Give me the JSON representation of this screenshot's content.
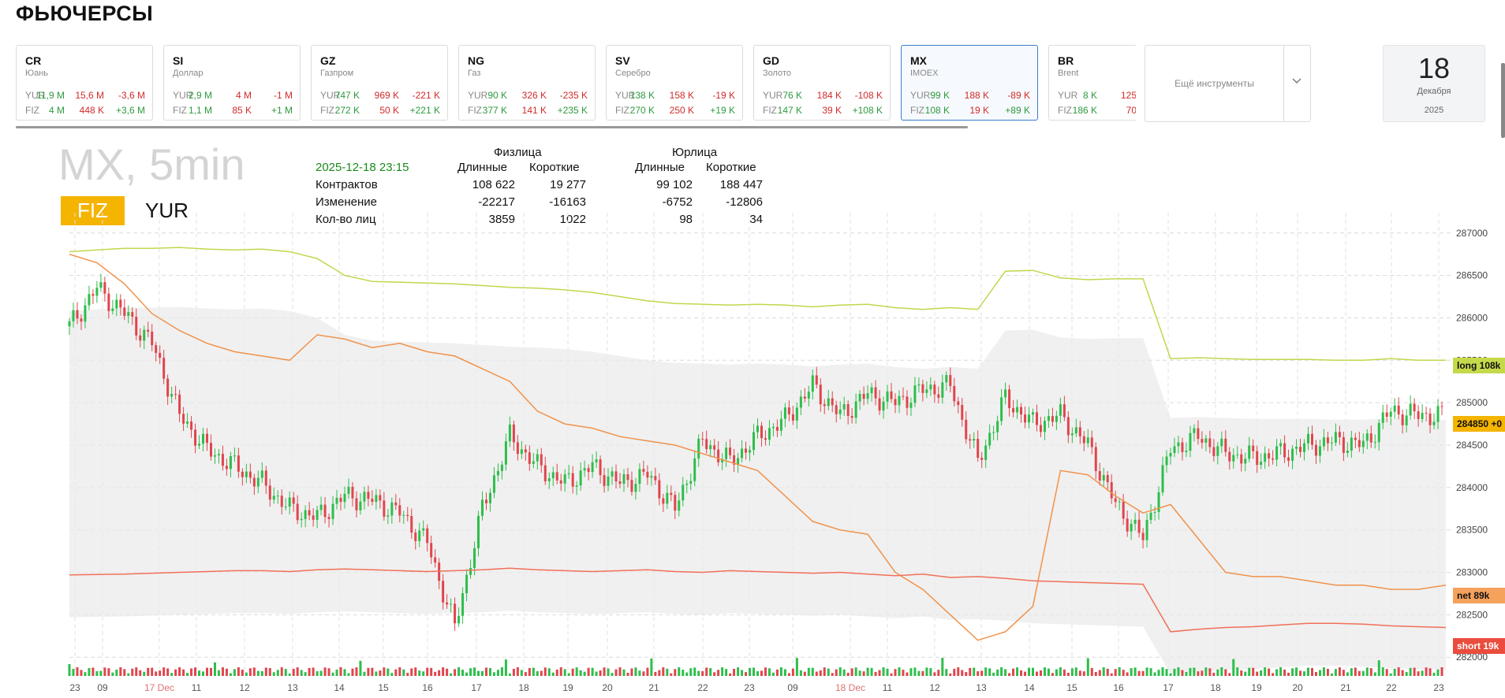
{
  "page_title": "ФЬЮЧЕРСЫ",
  "cards": [
    {
      "ticker": "CR",
      "name": "Юань",
      "yur": [
        "11,9 M",
        "15,6 M",
        "-3,6 M"
      ],
      "fiz": [
        "4 M",
        "448 K",
        "+3,6 M"
      ],
      "selected": false
    },
    {
      "ticker": "SI",
      "name": "Доллар",
      "yur": [
        "2,9 M",
        "4 M",
        "-1 M"
      ],
      "fiz": [
        "1,1 M",
        "85 K",
        "+1 M"
      ],
      "selected": false
    },
    {
      "ticker": "GZ",
      "name": "Газпром",
      "yur": [
        "747 K",
        "969 K",
        "-221 K"
      ],
      "fiz": [
        "272 K",
        "50 K",
        "+221 K"
      ],
      "selected": false
    },
    {
      "ticker": "NG",
      "name": "Газ",
      "yur": [
        "90 K",
        "326 K",
        "-235 K"
      ],
      "fiz": [
        "377 K",
        "141 K",
        "+235 K"
      ],
      "selected": false
    },
    {
      "ticker": "SV",
      "name": "Серебро",
      "yur": [
        "138 K",
        "158 K",
        "-19 K"
      ],
      "fiz": [
        "270 K",
        "250 K",
        "+19 K"
      ],
      "selected": false
    },
    {
      "ticker": "GD",
      "name": "Золото",
      "yur": [
        "76 K",
        "184 K",
        "-108 K"
      ],
      "fiz": [
        "147 K",
        "39 K",
        "+108 K"
      ],
      "selected": false
    },
    {
      "ticker": "MX",
      "name": "IMOEX",
      "yur": [
        "99 K",
        "188 K",
        "-89 K"
      ],
      "fiz": [
        "108 K",
        "19 K",
        "+89 K"
      ],
      "selected": true
    },
    {
      "ticker": "BR",
      "name": "Brent",
      "yur": [
        "8 K",
        "125",
        ""
      ],
      "fiz": [
        "186 K",
        "70",
        ""
      ],
      "selected": false
    }
  ],
  "row_labels": {
    "yur": "YUR",
    "fiz": "FIZ"
  },
  "more_instruments": "Ещё инструменты",
  "date": {
    "day": "18",
    "month": "Декабря",
    "year": "2025"
  },
  "chart_title": "MX, 5min",
  "toggle": {
    "fiz": "FIZ",
    "yur": "YUR"
  },
  "stats": {
    "timestamp": "2025-12-18 23:15",
    "fiz_header": "Физлица",
    "yur_header": "Юрлица",
    "col_long": "Длинные",
    "col_short": "Короткие",
    "rows": [
      {
        "label": "Контрактов",
        "fiz_long": "108 622",
        "fiz_short": "19 277",
        "yur_long": "99 102",
        "yur_short": "188 447"
      },
      {
        "label": "Изменение",
        "fiz_long": "-22217",
        "fiz_short": "-16163",
        "yur_long": "-6752",
        "yur_short": "-12806"
      },
      {
        "label": "Кол-во лиц",
        "fiz_long": "3859",
        "fiz_short": "1022",
        "yur_long": "98",
        "yur_short": "34"
      }
    ]
  },
  "chart_data": {
    "type": "line",
    "title": "MX, 5min",
    "x_ticks": [
      "23",
      "09",
      "17 Dec",
      "11",
      "12",
      "13",
      "14",
      "15",
      "16",
      "17",
      "18",
      "19",
      "20",
      "21",
      "22",
      "23",
      "09",
      "18 Dec",
      "11",
      "12",
      "13",
      "14",
      "15",
      "16",
      "17",
      "18",
      "19",
      "20",
      "21",
      "22",
      "23"
    ],
    "highlighted_ticks": [
      "17 Dec",
      "18 Dec"
    ],
    "y_ticks": [
      287000,
      286500,
      286000,
      285500,
      285000,
      284500,
      284000,
      283500,
      283000,
      282500,
      282000
    ],
    "ylim": [
      281900,
      287100
    ],
    "price_label": "284850 +0",
    "series": [
      {
        "name": "long 108k",
        "color": "#c3d64d",
        "values": [
          286780,
          286800,
          286820,
          286820,
          286830,
          286810,
          286800,
          286810,
          286780,
          286700,
          286500,
          286430,
          286420,
          286410,
          286400,
          286380,
          286360,
          286350,
          286330,
          286300,
          286250,
          286200,
          286170,
          286160,
          286150,
          286160,
          286150,
          286130,
          286150,
          286160,
          286120,
          286100,
          286120,
          286100,
          286550,
          286560,
          286470,
          286450,
          286460,
          286460,
          285520,
          285530,
          285520,
          285510,
          285510,
          285510,
          285500,
          285500,
          285520,
          285500,
          285500
        ]
      },
      {
        "name": "net 89k",
        "color": "#f0924a",
        "values": [
          286750,
          286650,
          286400,
          286050,
          285850,
          285700,
          285600,
          285550,
          285500,
          285800,
          285750,
          285650,
          285700,
          285600,
          285550,
          285400,
          285250,
          284900,
          284750,
          284700,
          284600,
          284550,
          284500,
          284400,
          284300,
          284200,
          283900,
          283600,
          283500,
          283450,
          283000,
          282800,
          282500,
          282200,
          282300,
          282600,
          284200,
          284150,
          283900,
          283700,
          283800,
          283400,
          283000,
          282950,
          282950,
          282900,
          282850,
          282850,
          282800,
          282800,
          282850
        ]
      },
      {
        "name": "short 19k",
        "color": "#f07058",
        "values": [
          282970,
          282975,
          282980,
          282990,
          283000,
          283010,
          283020,
          283020,
          283010,
          283030,
          283040,
          283030,
          283020,
          283010,
          283020,
          283030,
          283050,
          283030,
          283020,
          283010,
          283020,
          283030,
          283010,
          283000,
          283020,
          283010,
          283000,
          282990,
          283000,
          282980,
          282960,
          282980,
          282940,
          282950,
          282930,
          282900,
          282890,
          282880,
          282870,
          282860,
          282300,
          282330,
          282350,
          282360,
          282380,
          282400,
          282400,
          282390,
          282370,
          282360,
          282350
        ]
      },
      {
        "name": "price",
        "color": "#26a69a",
        "values": [
          285900,
          286350,
          286050,
          285700,
          284850,
          284450,
          284250,
          284050,
          283750,
          283650,
          283900,
          283850,
          283700,
          283350,
          282350,
          283750,
          284600,
          284250,
          284050,
          284250,
          284050,
          284150,
          283750,
          284550,
          284300,
          284600,
          284800,
          285200,
          284850,
          285100,
          285000,
          285150,
          285200,
          284300,
          285050,
          284750,
          284850,
          284500,
          283800,
          283400,
          284450,
          284600,
          284400,
          284350,
          284400,
          284500,
          284550,
          284500,
          284900,
          284850,
          284850
        ]
      }
    ],
    "legend_tags": [
      {
        "text": "long 108k",
        "bg": "#c6d94b",
        "fg": "#111"
      },
      {
        "text": "284850 +0",
        "bg": "#f5b400",
        "fg": "#111"
      },
      {
        "text": "net 89k",
        "bg": "#f5a25d",
        "fg": "#111"
      },
      {
        "text": "short 19k",
        "bg": "#ea4d3d",
        "fg": "#fff"
      }
    ],
    "colors": {
      "up": "#2dbe4b",
      "down": "#e0454d",
      "band": "#e9e9e9"
    }
  }
}
